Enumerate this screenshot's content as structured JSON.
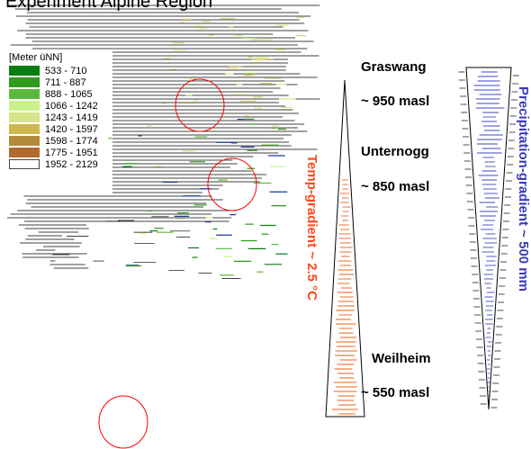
{
  "title": "Experiment Alpine Region",
  "legend": {
    "title": "[Meter üNN]",
    "items": [
      {
        "label": "533 - 710",
        "color": "#0a7d12"
      },
      {
        "label": "711 - 887",
        "color": "#2f9a1c"
      },
      {
        "label": "888 - 1065",
        "color": "#5cb83a"
      },
      {
        "label": "1066 - 1242",
        "color": "#c9f08a"
      },
      {
        "label": "1243 - 1419",
        "color": "#d8e48a"
      },
      {
        "label": "1420 - 1597",
        "color": "#cdb74a"
      },
      {
        "label": "1598 - 1774",
        "color": "#b38a3a"
      },
      {
        "label": "1775 - 1951",
        "color": "#b36a2e"
      },
      {
        "label": "1952 - 2129",
        "color": "#ffffff"
      }
    ]
  },
  "stations": [
    {
      "name": "Graswang",
      "altitude": "~ 950 masl"
    },
    {
      "name": "Unternogg",
      "altitude": "~ 850 masl"
    },
    {
      "name": "Weilheim",
      "altitude": "~ 550 masl"
    }
  ],
  "gradients": {
    "temperature": {
      "label": "Temp-gradient ~ 2.5 °C",
      "color": "#ff4a1a"
    },
    "precipitation": {
      "label": "Precipitation-gradient ~ 500 mm",
      "color": "#3a3ab8"
    }
  },
  "colors": {
    "circle": "#ff0000",
    "map_lines": "#000000",
    "temp_hatch": "#e8601a",
    "precip_hatch": "#3a4ac0"
  }
}
